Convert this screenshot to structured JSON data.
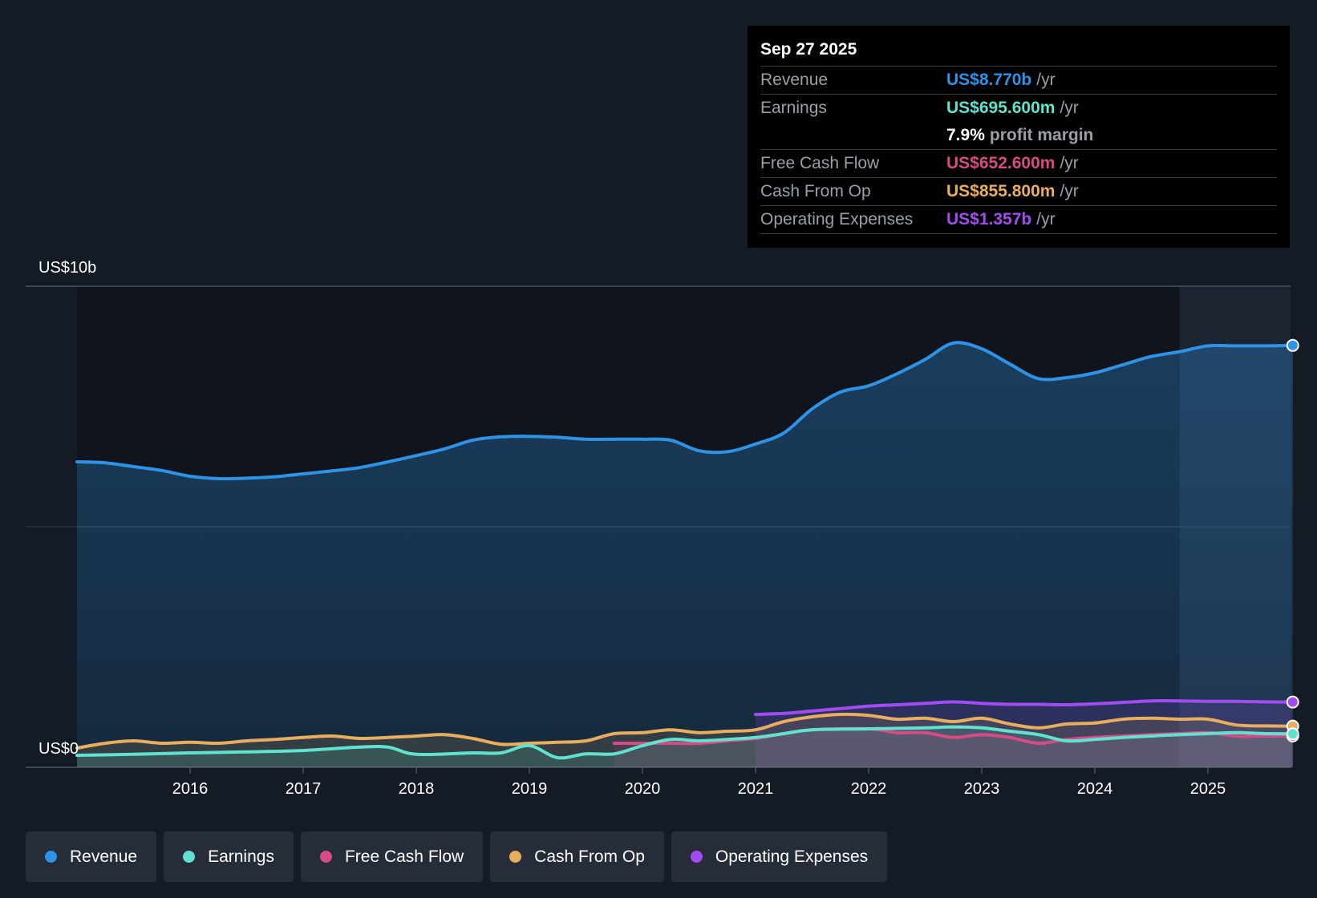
{
  "tooltip": {
    "date": "Sep 27 2025",
    "rows": [
      {
        "label": "Revenue",
        "value": "US$8.770b",
        "unit": "/yr",
        "color": "#2e93e6"
      },
      {
        "label": "Earnings",
        "value": "US$695.600m",
        "unit": "/yr",
        "color": "#5fe3d0"
      },
      {
        "margin_value": "7.9%",
        "margin_text": "profit margin"
      },
      {
        "label": "Free Cash Flow",
        "value": "US$652.600m",
        "unit": "/yr",
        "color": "#d64a86"
      },
      {
        "label": "Cash From Op",
        "value": "US$855.800m",
        "unit": "/yr",
        "color": "#e8ae5e"
      },
      {
        "label": "Operating Expenses",
        "value": "US$1.357b",
        "unit": "/yr",
        "color": "#a24bf2"
      }
    ]
  },
  "legend": [
    {
      "label": "Revenue",
      "color": "#2e93e6"
    },
    {
      "label": "Earnings",
      "color": "#5fe3d0"
    },
    {
      "label": "Free Cash Flow",
      "color": "#d64a86"
    },
    {
      "label": "Cash From Op",
      "color": "#e8ae5e"
    },
    {
      "label": "Operating Expenses",
      "color": "#a24bf2"
    }
  ],
  "chart_data": {
    "type": "area",
    "title": "",
    "y_top_label": "US$10b",
    "y_bottom_label": "US$0",
    "ylim": [
      0,
      10
    ],
    "xlim": [
      2015.0,
      2025.75
    ],
    "x_ticks": [
      2016,
      2017,
      2018,
      2019,
      2020,
      2021,
      2022,
      2023,
      2024,
      2025
    ],
    "x_tick_labels": [
      "2016",
      "2017",
      "2018",
      "2019",
      "2020",
      "2021",
      "2022",
      "2023",
      "2024",
      "2025"
    ],
    "forecast_start": 2024.75,
    "series": [
      {
        "name": "Revenue",
        "color": "#2e93e6",
        "fill": true,
        "x": [
          2015.0,
          2015.25,
          2015.5,
          2015.75,
          2016.0,
          2016.25,
          2016.5,
          2016.75,
          2017.0,
          2017.25,
          2017.5,
          2017.75,
          2018.0,
          2018.25,
          2018.5,
          2018.75,
          2019.0,
          2019.25,
          2019.5,
          2019.75,
          2020.0,
          2020.25,
          2020.5,
          2020.75,
          2021.0,
          2021.25,
          2021.5,
          2021.75,
          2022.0,
          2022.25,
          2022.5,
          2022.75,
          2023.0,
          2023.25,
          2023.5,
          2023.75,
          2024.0,
          2024.25,
          2024.5,
          2024.75,
          2025.0,
          2025.25,
          2025.5,
          2025.75
        ],
        "values": [
          6.35,
          6.33,
          6.25,
          6.17,
          6.05,
          6.0,
          6.01,
          6.04,
          6.1,
          6.16,
          6.23,
          6.35,
          6.48,
          6.62,
          6.8,
          6.87,
          6.88,
          6.86,
          6.82,
          6.82,
          6.82,
          6.8,
          6.58,
          6.56,
          6.72,
          6.95,
          7.45,
          7.8,
          7.93,
          8.18,
          8.48,
          8.82,
          8.7,
          8.38,
          8.08,
          8.1,
          8.2,
          8.37,
          8.54,
          8.64,
          8.76,
          8.76,
          8.76,
          8.77
        ]
      },
      {
        "name": "Earnings",
        "color": "#5fe3d0",
        "fill": true,
        "x": [
          2015.0,
          2015.5,
          2016.0,
          2016.5,
          2017.0,
          2017.5,
          2017.75,
          2018.0,
          2018.5,
          2018.75,
          2019.0,
          2019.25,
          2019.5,
          2019.75,
          2020.0,
          2020.25,
          2020.5,
          2020.75,
          2021.0,
          2021.25,
          2021.5,
          2022.0,
          2022.5,
          2022.75,
          2023.0,
          2023.25,
          2023.5,
          2023.75,
          2024.0,
          2024.25,
          2024.5,
          2024.75,
          2025.0,
          2025.25,
          2025.5,
          2025.75
        ],
        "values": [
          0.25,
          0.27,
          0.3,
          0.32,
          0.35,
          0.42,
          0.42,
          0.27,
          0.3,
          0.3,
          0.45,
          0.2,
          0.28,
          0.28,
          0.45,
          0.58,
          0.55,
          0.58,
          0.62,
          0.7,
          0.78,
          0.8,
          0.82,
          0.84,
          0.82,
          0.75,
          0.68,
          0.55,
          0.58,
          0.62,
          0.65,
          0.68,
          0.7,
          0.72,
          0.7,
          0.6956
        ]
      },
      {
        "name": "Free Cash Flow",
        "color": "#d64a86",
        "fill": true,
        "x": [
          2019.75,
          2020.0,
          2020.25,
          2020.5,
          2020.75,
          2021.0,
          2021.25,
          2021.5,
          2022.0,
          2022.25,
          2022.5,
          2022.75,
          2023.0,
          2023.25,
          2023.5,
          2023.75,
          2024.0,
          2024.25,
          2024.5,
          2024.75,
          2025.0,
          2025.25,
          2025.5,
          2025.75
        ],
        "values": [
          0.5,
          0.5,
          0.5,
          0.5,
          0.55,
          0.6,
          0.7,
          0.78,
          0.8,
          0.72,
          0.72,
          0.62,
          0.68,
          0.62,
          0.5,
          0.58,
          0.62,
          0.65,
          0.68,
          0.7,
          0.72,
          0.65,
          0.65,
          0.6526
        ]
      },
      {
        "name": "Cash From Op",
        "color": "#e8ae5e",
        "fill": true,
        "x": [
          2015.0,
          2015.25,
          2015.5,
          2015.75,
          2016.0,
          2016.25,
          2016.5,
          2016.75,
          2017.0,
          2017.25,
          2017.5,
          2017.75,
          2018.0,
          2018.25,
          2018.5,
          2018.75,
          2019.0,
          2019.25,
          2019.5,
          2019.75,
          2020.0,
          2020.25,
          2020.5,
          2020.75,
          2021.0,
          2021.25,
          2021.5,
          2021.75,
          2022.0,
          2022.25,
          2022.5,
          2022.75,
          2023.0,
          2023.25,
          2023.5,
          2023.75,
          2024.0,
          2024.25,
          2024.5,
          2024.75,
          2025.0,
          2025.25,
          2025.5,
          2025.75
        ],
        "values": [
          0.4,
          0.5,
          0.55,
          0.5,
          0.52,
          0.5,
          0.55,
          0.58,
          0.62,
          0.65,
          0.6,
          0.62,
          0.65,
          0.68,
          0.6,
          0.48,
          0.5,
          0.52,
          0.55,
          0.7,
          0.72,
          0.78,
          0.72,
          0.75,
          0.78,
          0.95,
          1.05,
          1.1,
          1.08,
          1.0,
          1.02,
          0.95,
          1.02,
          0.9,
          0.82,
          0.9,
          0.92,
          1.0,
          1.02,
          1.0,
          1.0,
          0.88,
          0.86,
          0.8558
        ]
      },
      {
        "name": "Operating Expenses",
        "color": "#a24bf2",
        "fill": true,
        "x": [
          2021.0,
          2021.25,
          2021.5,
          2021.75,
          2022.0,
          2022.25,
          2022.5,
          2022.75,
          2023.0,
          2023.25,
          2023.5,
          2023.75,
          2024.0,
          2024.25,
          2024.5,
          2024.75,
          2025.0,
          2025.25,
          2025.5,
          2025.75
        ],
        "values": [
          1.1,
          1.12,
          1.17,
          1.22,
          1.27,
          1.3,
          1.33,
          1.36,
          1.33,
          1.31,
          1.31,
          1.3,
          1.32,
          1.35,
          1.38,
          1.38,
          1.37,
          1.37,
          1.36,
          1.357
        ]
      }
    ]
  }
}
